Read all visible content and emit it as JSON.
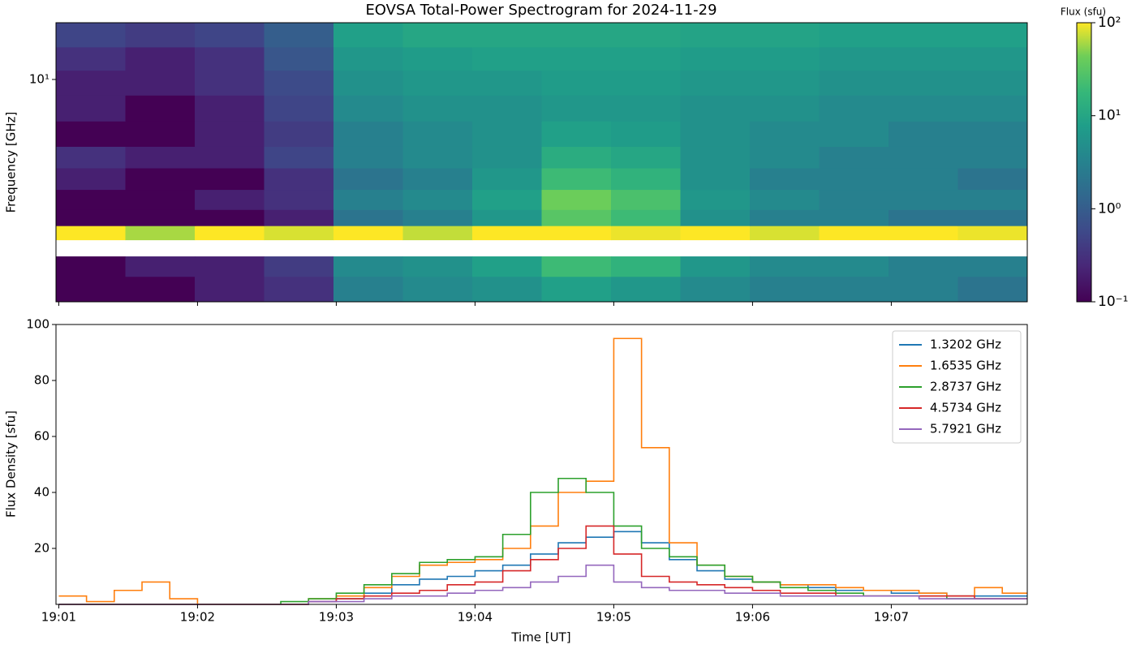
{
  "chart_data": [
    {
      "type": "heatmap",
      "title": "EOVSA Total-Power Spectrogram for 2024-11-29",
      "ylabel": "Frequency [GHz]",
      "colormap": "viridis",
      "x_bins": [
        0.98,
        1.48,
        1.98,
        2.48,
        2.98,
        3.48,
        3.98,
        4.48,
        4.98,
        5.48,
        5.98,
        6.48,
        6.98,
        7.48,
        7.98
      ],
      "y_bins": [
        1.0,
        1.3,
        1.6,
        1.9,
        2.2,
        2.6,
        3.2,
        4.0,
        5.0,
        6.5,
        8.5,
        11,
        14,
        18
      ],
      "values": [
        [
          0.1,
          0.1,
          0.2,
          0.3,
          3,
          4,
          5,
          8,
          6,
          4,
          3,
          3,
          3,
          2
        ],
        [
          0.1,
          0.2,
          0.2,
          0.4,
          4,
          5,
          8,
          20,
          15,
          6,
          4,
          4,
          3,
          3
        ],
        [
          null,
          null,
          null,
          null,
          null,
          null,
          null,
          null,
          null,
          null,
          null,
          null,
          null,
          null
        ],
        [
          100,
          60,
          100,
          80,
          100,
          70,
          100,
          100,
          90,
          100,
          80,
          100,
          100,
          90
        ],
        [
          0.1,
          0.1,
          0.1,
          0.2,
          2,
          3,
          6,
          30,
          20,
          5,
          3,
          3,
          2,
          2
        ],
        [
          0.1,
          0.1,
          0.2,
          0.3,
          3,
          4,
          8,
          40,
          25,
          6,
          4,
          3,
          3,
          3
        ],
        [
          0.2,
          0.1,
          0.1,
          0.3,
          2,
          3,
          6,
          20,
          15,
          5,
          3,
          3,
          3,
          2
        ],
        [
          0.3,
          0.2,
          0.2,
          0.5,
          3,
          4,
          5,
          12,
          10,
          5,
          4,
          3,
          3,
          3
        ],
        [
          0.1,
          0.1,
          0.2,
          0.4,
          3,
          4,
          5,
          8,
          7,
          5,
          4,
          4,
          3,
          3
        ],
        [
          0.2,
          0.1,
          0.2,
          0.5,
          4,
          5,
          5,
          6,
          6,
          5,
          5,
          4,
          4,
          4
        ],
        [
          0.2,
          0.2,
          0.3,
          0.6,
          5,
          6,
          6,
          7,
          7,
          6,
          6,
          5,
          5,
          5
        ],
        [
          0.3,
          0.2,
          0.3,
          0.8,
          6,
          7,
          8,
          8,
          8,
          7,
          7,
          6,
          6,
          6
        ],
        [
          0.5,
          0.4,
          0.5,
          1,
          8,
          10,
          10,
          10,
          10,
          9,
          9,
          8,
          8,
          8
        ]
      ],
      "xlim": [
        0.98,
        7.98
      ],
      "xticks": [
        1,
        2,
        3,
        4,
        5,
        6,
        7
      ],
      "ylim": [
        1.0,
        18
      ],
      "yticks": [
        {
          "value": 10,
          "label": "10¹"
        }
      ],
      "log_y": true,
      "colorbar": {
        "label": "Flux (sfu)",
        "lim": [
          0.1,
          100
        ],
        "log": true,
        "ticks": [
          {
            "value": 0.1,
            "label": "10⁻¹"
          },
          {
            "value": 1,
            "label": "10⁰"
          },
          {
            "value": 10,
            "label": "10¹"
          },
          {
            "value": 100,
            "label": "10²"
          }
        ]
      }
    },
    {
      "type": "line",
      "step": true,
      "xlabel": "Time [UT]",
      "ylabel": "Flux Density [sfu]",
      "legend": "upper right",
      "x": [
        1.0,
        1.2,
        1.4,
        1.6,
        1.8,
        2.0,
        2.2,
        2.4,
        2.6,
        2.8,
        3.0,
        3.2,
        3.4,
        3.6,
        3.8,
        4.0,
        4.2,
        4.4,
        4.6,
        4.8,
        5.0,
        5.2,
        5.4,
        5.6,
        5.8,
        6.0,
        6.2,
        6.4,
        6.6,
        6.8,
        7.0,
        7.2,
        7.4,
        7.6,
        7.8
      ],
      "xlim": [
        0.98,
        7.98
      ],
      "xticks": [
        {
          "value": 1,
          "label": "19:01"
        },
        {
          "value": 2,
          "label": "19:02"
        },
        {
          "value": 3,
          "label": "19:03"
        },
        {
          "value": 4,
          "label": "19:04"
        },
        {
          "value": 5,
          "label": "19:05"
        },
        {
          "value": 6,
          "label": "19:06"
        },
        {
          "value": 7,
          "label": "19:07"
        }
      ],
      "ylim": [
        0,
        100
      ],
      "yticks": [
        20,
        40,
        60,
        80,
        100
      ],
      "series": [
        {
          "name": "1.3202 GHz",
          "color": "#1f77b4",
          "values": [
            0,
            0,
            0,
            0,
            0,
            0,
            0,
            0,
            0,
            1,
            2,
            4,
            7,
            9,
            10,
            12,
            14,
            18,
            22,
            24,
            26,
            22,
            16,
            12,
            9,
            8,
            7,
            6,
            5,
            5,
            4,
            4,
            3,
            3,
            3
          ]
        },
        {
          "name": "1.6535 GHz",
          "color": "#ff7f0e",
          "values": [
            3,
            1,
            5,
            8,
            2,
            0,
            0,
            0,
            0,
            2,
            3,
            6,
            10,
            14,
            15,
            16,
            20,
            28,
            40,
            44,
            95,
            56,
            22,
            14,
            10,
            8,
            7,
            7,
            6,
            5,
            5,
            4,
            3,
            6,
            4
          ]
        },
        {
          "name": "2.8737 GHz",
          "color": "#2ca02c",
          "values": [
            0,
            0,
            0,
            0,
            0,
            0,
            0,
            0,
            1,
            2,
            4,
            7,
            11,
            15,
            16,
            17,
            25,
            40,
            45,
            40,
            28,
            20,
            17,
            14,
            10,
            8,
            6,
            5,
            4,
            3,
            3,
            3,
            2,
            2,
            2
          ]
        },
        {
          "name": "4.5734 GHz",
          "color": "#d62728",
          "values": [
            0,
            0,
            0,
            0,
            0,
            0,
            0,
            0,
            0,
            1,
            2,
            3,
            4,
            5,
            7,
            8,
            12,
            16,
            20,
            28,
            18,
            10,
            8,
            7,
            6,
            5,
            4,
            4,
            3,
            3,
            3,
            3,
            3,
            2,
            2
          ]
        },
        {
          "name": "5.7921 GHz",
          "color": "#9467bd",
          "values": [
            0,
            0,
            0,
            0,
            0,
            0,
            0,
            0,
            0,
            1,
            1,
            2,
            3,
            3,
            4,
            5,
            6,
            8,
            10,
            14,
            8,
            6,
            5,
            5,
            4,
            4,
            3,
            3,
            3,
            3,
            3,
            2,
            2,
            2,
            2
          ]
        }
      ]
    }
  ]
}
